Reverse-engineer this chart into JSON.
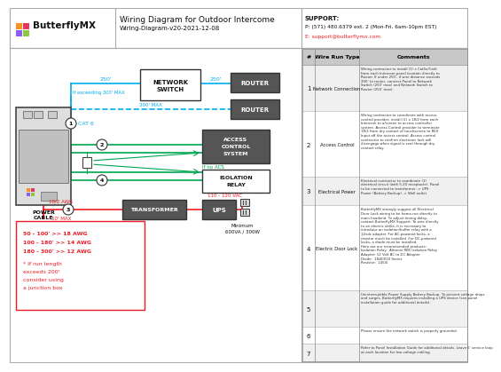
{
  "title": "Wiring Diagram for Outdoor Intercome",
  "subtitle": "Wiring-Diagram-v20-2021-12-08",
  "support_label": "SUPPORT:",
  "support_phone": "P: (571) 480.6379 ext. 2 (Mon-Fri, 6am-10pm EST)",
  "support_email": "E: support@butterflymx.com",
  "bg_color": "#ffffff",
  "dark_box_fill": "#555555",
  "dark_box_text": "#ffffff",
  "cyan_color": "#00aeef",
  "green_color": "#00a651",
  "red_color": "#ed1c24",
  "orange_color": "#f7941d",
  "lime_color": "#8dc63f",
  "border_color": "#aaaaaa",
  "table_hdr_bg": "#c8c8c8",
  "row_bg_odd": "#f0f0f0",
  "row_bg_even": "#ffffff",
  "wire_nums": [
    "1",
    "2",
    "3",
    "4",
    "5",
    "6",
    "7"
  ],
  "wire_types": [
    "Network Connection",
    "Access Control",
    "Electrical Power",
    "Electric Door Lock",
    "",
    "",
    ""
  ],
  "c1": "Wiring contractor to install (1) x Cat5e/Cat6\nfrom each Intercom panel location directly to\nRouter. If under 250', if wire distance exceeds\n300' to router, connect Panel to Network\nSwitch (250' max) and Network Switch to\nRouter (250' max).",
  "c2": "Wiring contractor to coordinate with access\ncontrol provider, install (1) x 18/2 from each\nIntercom to a/screen to access controller\nsystem. Access Control provider to terminate\n18/2 from dry contact of touchscreen to REX\nInput off the access control. Access control\ncontractor to confirm electronic lock will\ndisengage when signal is sent through dry\ncontact relay.",
  "c3": "Electrical contractor to coordinate (1)\nelectrical circuit (with 5-20 receptacle). Panel\nto be connected to transformer -> UPS\nPower (Battery Backup) -> Wall outlet",
  "c4": "ButterflyMX strongly suggest all Electrical\nDoor Lock wiring to be home-run directly to\nmain headend. To adjust timing delay,\ncontact ButterflyMX Support. To wire directly\nto an electric strike, it is necessary to\nintroduce an isolation/buffer relay with a\n12vdc adapter. For AC-powered locks, a\nresistor much be installed. For DC-powered\nlocks, a diode must be installed.\nHere are our recommended products:\nIsolation Relay:  Altronix RB5 Isolation Relay\nAdapter: 12 Volt AC to DC Adapter\nDiode:  1N4001X Series\nResistor:  1450i",
  "c5": "Uninterruptible Power Supply Battery Backup. To prevent voltage drops\nand surges, ButterflyMX requires installing a UPS device (see panel\ninstallation guide for additional details).",
  "c6": "Please ensure the network switch is properly grounded.",
  "c7": "Refer to Panel Installation Guide for additional details. Leave 6' service loop\nat each location for low voltage cabling."
}
